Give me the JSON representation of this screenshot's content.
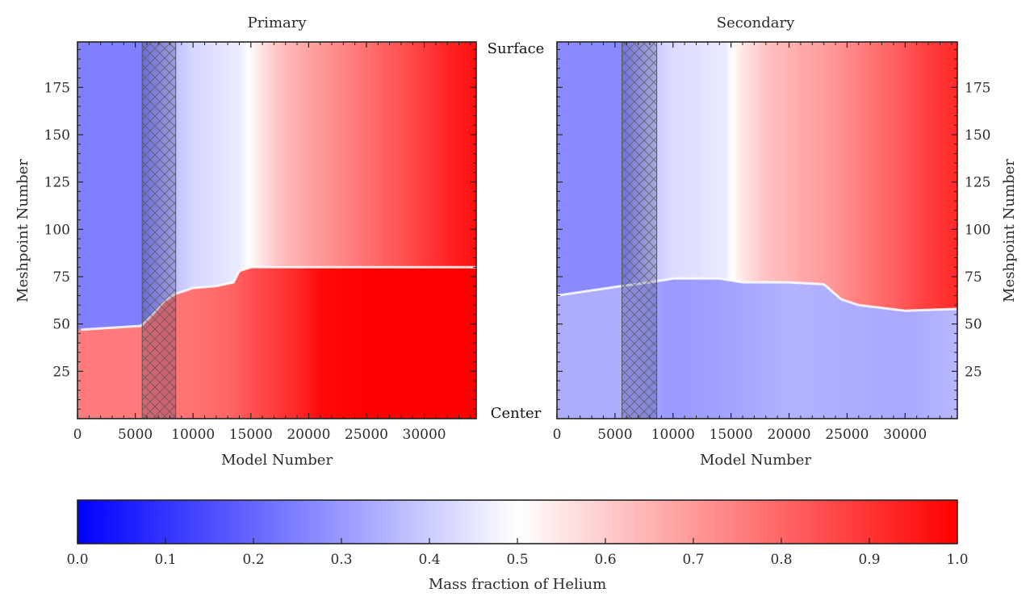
{
  "chart_data": [
    {
      "type": "heatmap",
      "panel": "left",
      "title": "Primary",
      "xlabel": "Model Number",
      "ylabel": "Meshpoint Number",
      "xlim": [
        0,
        34500
      ],
      "ylim": [
        0,
        199
      ],
      "xticks": [
        0,
        5000,
        10000,
        15000,
        20000,
        25000,
        30000
      ],
      "xtick_labels": [
        "0",
        "5000",
        "10000",
        "15000",
        "20000",
        "25000",
        "30000"
      ],
      "yticks": [
        25,
        50,
        75,
        100,
        125,
        150,
        175
      ],
      "ytick_labels": [
        "25",
        "50",
        "75",
        "100",
        "125",
        "150",
        "175"
      ],
      "yaxis_side": "left",
      "hatched_band": [
        5600,
        8500
      ],
      "upper_region": {
        "x": [
          0,
          5500,
          8500,
          10000,
          12000,
          14000,
          16000,
          18000,
          20000,
          22000,
          24000,
          26000,
          28000,
          30000,
          32000,
          34500
        ],
        "values": [
          0.25,
          0.25,
          0.38,
          0.42,
          0.44,
          0.46,
          0.56,
          0.64,
          0.68,
          0.72,
          0.76,
          0.8,
          0.84,
          0.88,
          0.93,
          0.97
        ]
      },
      "lower_region": {
        "x": [
          0,
          5500,
          9000,
          13000,
          16000,
          19000,
          21000,
          25000,
          30000,
          34500
        ],
        "values": [
          0.76,
          0.76,
          0.77,
          0.8,
          0.86,
          0.92,
          0.98,
          1.0,
          1.0,
          1.0
        ]
      },
      "core_boundary": {
        "x": [
          300,
          5500,
          6500,
          7500,
          8500,
          10000,
          12000,
          13500,
          14000,
          15000,
          34500
        ],
        "y": [
          47,
          49,
          55,
          62,
          66,
          69,
          70,
          72,
          78,
          80,
          80
        ]
      }
    },
    {
      "type": "heatmap",
      "panel": "right",
      "title": "Secondary",
      "xlabel": "Model Number",
      "ylabel": "Meshpoint Number",
      "xlim": [
        0,
        34500
      ],
      "ylim": [
        0,
        199
      ],
      "xticks": [
        0,
        5000,
        10000,
        15000,
        20000,
        25000,
        30000
      ],
      "xtick_labels": [
        "0",
        "5000",
        "10000",
        "15000",
        "20000",
        "25000",
        "30000"
      ],
      "yticks": [
        25,
        50,
        75,
        100,
        125,
        150,
        175
      ],
      "ytick_labels": [
        "25",
        "50",
        "75",
        "100",
        "125",
        "150",
        "175"
      ],
      "yaxis_side": "right",
      "hatched_band": [
        5600,
        8600
      ],
      "upper_region": {
        "x": [
          0,
          5500,
          8500,
          10000,
          12000,
          14500,
          16000,
          18000,
          20000,
          22000,
          24000,
          26000,
          28000,
          30000,
          32000,
          34500
        ],
        "values": [
          0.27,
          0.27,
          0.4,
          0.43,
          0.44,
          0.46,
          0.55,
          0.62,
          0.65,
          0.68,
          0.71,
          0.75,
          0.79,
          0.83,
          0.88,
          0.92
        ]
      },
      "lower_region": {
        "x": [
          0,
          5500,
          10000,
          15000,
          20000,
          25000,
          30000,
          34500
        ],
        "values": [
          0.34,
          0.34,
          0.3,
          0.32,
          0.35,
          0.34,
          0.33,
          0.36
        ]
      },
      "core_boundary": {
        "x": [
          0,
          5500,
          8000,
          10000,
          12000,
          14000,
          16000,
          20000,
          23000,
          24500,
          26000,
          30000,
          34500
        ],
        "y": [
          65,
          70,
          72,
          74,
          74,
          74,
          72,
          72,
          71,
          63,
          60,
          57,
          58
        ]
      }
    }
  ],
  "edge_labels": {
    "surface": "Surface",
    "center": "Center"
  },
  "colorbar": {
    "label": "Mass fraction of Helium",
    "colormap": "bwr",
    "colors": [
      "#0000ff",
      "#ffffff",
      "#ff0000"
    ],
    "range": [
      0.0,
      1.0
    ],
    "ticks": [
      0.0,
      0.1,
      0.2,
      0.3,
      0.4,
      0.5,
      0.6,
      0.7,
      0.8,
      0.9,
      1.0
    ],
    "tick_labels": [
      "0.0",
      "0.1",
      "0.2",
      "0.3",
      "0.4",
      "0.5",
      "0.6",
      "0.7",
      "0.8",
      "0.9",
      "1.0"
    ]
  }
}
